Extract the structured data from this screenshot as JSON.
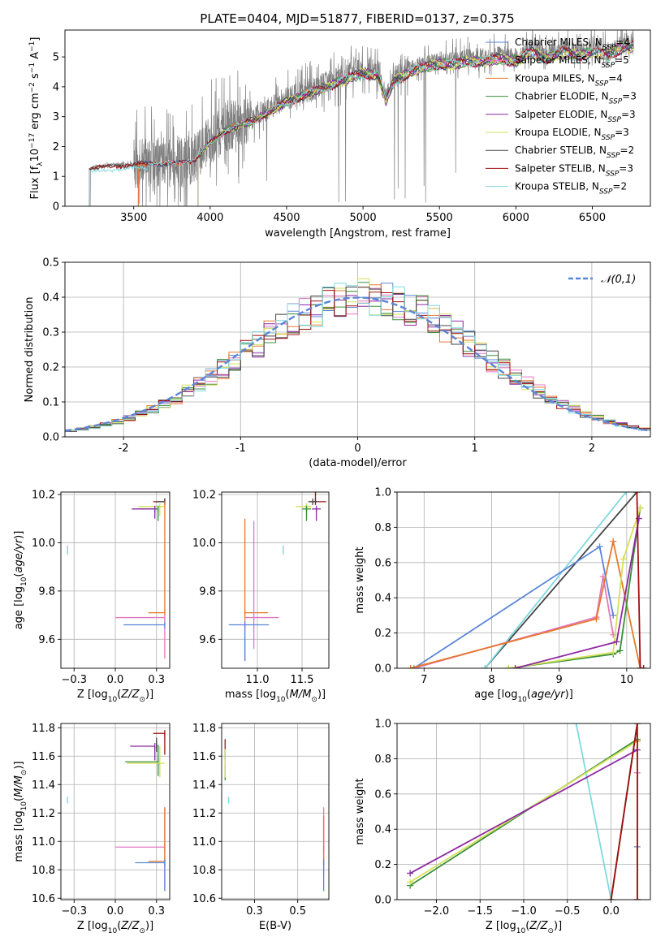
{
  "figure": {
    "title": "PLATE=0404, MJD=51877, FIBERID=0137, z=0.375"
  },
  "colors": {
    "grid": "#b0b0b0",
    "data_spectrum": "#808080",
    "gauss": "#5a86d6"
  },
  "chart_data": [
    {
      "id": "spectrum",
      "type": "line",
      "title": "PLATE=0404, MJD=51877, FIBERID=0137, z=0.375",
      "xlabel": "wavelength [Angstrom, rest frame]",
      "ylabel": "Flux [f_λ 10^-17 erg cm^-2 s^-1 A^-1]",
      "xlim": [
        3050,
        6880
      ],
      "ylim": [
        0,
        5.9
      ],
      "x_ticks": [
        3500,
        4000,
        4500,
        5000,
        5500,
        6000,
        6500
      ],
      "y_ticks": [
        0,
        1,
        2,
        3,
        4,
        5
      ],
      "grid": false,
      "legend_position": "top-right",
      "data_series": {
        "name": "",
        "color": "#808080"
      },
      "continuum_nodes": {
        "x": [
          3220,
          3300,
          3400,
          3500,
          3600,
          3700,
          3800,
          3900,
          4000,
          4100,
          4200,
          4300,
          4400,
          4500,
          4600,
          4700,
          4800,
          4900,
          5000,
          5100,
          5150,
          5200,
          5300,
          5400,
          5500,
          5600,
          5700,
          5800,
          5900,
          6000,
          6100,
          6200,
          6300,
          6400,
          6500,
          6600,
          6700
        ],
        "y": [
          1.3,
          1.35,
          1.4,
          1.42,
          1.5,
          1.45,
          1.5,
          1.6,
          2.2,
          2.6,
          2.8,
          3.0,
          3.3,
          3.6,
          3.8,
          4.0,
          4.2,
          4.4,
          4.6,
          4.5,
          3.6,
          4.3,
          4.6,
          4.8,
          4.9,
          4.9,
          5.0,
          5.0,
          5.1,
          5.0,
          5.3,
          5.1,
          5.3,
          5.2,
          5.3,
          5.2,
          5.5
        ]
      },
      "legend": [
        "Chabrier MILES, N_SSP=4",
        "Salpeter MILES, N_SSP=5",
        "Kroupa MILES, N_SSP=4",
        "Chabrier ELODIE, N_SSP=3",
        "Salpeter ELODIE, N_SSP=3",
        "Kroupa ELODIE, N_SSP=3",
        "Chabrier STELIB, N_SSP=2",
        "Salpeter STELIB, N_SSP=3",
        "Kroupa STELIB, N_SSP=2"
      ],
      "series": [
        {
          "name": "Chabrier MILES, N_SSP=4",
          "color": "#5a86d6",
          "xmin": 3530
        },
        {
          "name": "Salpeter MILES, N_SSP=5",
          "color": "#e377c2",
          "xmin": 3530
        },
        {
          "name": "Kroupa MILES, N_SSP=4",
          "color": "#e6792b",
          "xmin": 3530
        },
        {
          "name": "Chabrier ELODIE, N_SSP=3",
          "color": "#3a8f3a",
          "xmin": 3920
        },
        {
          "name": "Salpeter ELODIE, N_SSP=3",
          "color": "#8e2aa3",
          "xmin": 3920
        },
        {
          "name": "Kroupa ELODIE, N_SSP=3",
          "color": "#d4e157",
          "xmin": 3920
        },
        {
          "name": "Chabrier STELIB, N_SSP=2",
          "color": "#444444",
          "xmin": 3210
        },
        {
          "name": "Salpeter STELIB, N_SSP=3",
          "color": "#a01010",
          "xmin": 3210
        },
        {
          "name": "Kroupa STELIB, N_SSP=2",
          "color": "#7fd9e0",
          "xmin": 3210
        }
      ]
    },
    {
      "id": "residuals",
      "type": "line",
      "xlabel": "(data-model)/error",
      "ylabel": "Normed distribution",
      "xlim": [
        -2.5,
        2.5
      ],
      "ylim": [
        0,
        0.5
      ],
      "x_ticks": [
        -2,
        -1,
        0,
        1,
        2
      ],
      "y_ticks": [
        0.0,
        0.1,
        0.2,
        0.3,
        0.4,
        0.5
      ],
      "grid": true,
      "legend_position": "top-right",
      "legend": [
        "𝒩(0,1)"
      ],
      "bin_width": 0.1,
      "gaussian": {
        "name": "𝒩(0,1)",
        "mu": 0,
        "sigma": 1,
        "color": "#5a86d6"
      },
      "series": [
        {
          "color": "#5a86d6"
        },
        {
          "color": "#e377c2"
        },
        {
          "color": "#e6792b"
        },
        {
          "color": "#3a8f3a"
        },
        {
          "color": "#8e2aa3"
        },
        {
          "color": "#d4e157"
        },
        {
          "color": "#444444"
        },
        {
          "color": "#a01010"
        },
        {
          "color": "#7fd9e0"
        }
      ]
    },
    {
      "id": "age-vs-Z",
      "type": "scatter",
      "xlabel": "Z [log10(Z/Z⊙)]",
      "ylabel": "age [log10(age/yr)]",
      "xlim": [
        -0.33,
        0.33
      ],
      "ylim": [
        9.48,
        10.21
      ],
      "x_ticks": [
        -0.25,
        0.0,
        0.25
      ],
      "y_ticks": [
        9.6,
        9.8,
        10.0,
        10.2
      ],
      "grid": true,
      "points": [
        {
          "x": 0.3,
          "y": 10.17,
          "color": "#a01010",
          "xerr": [
            0.07,
            0.0
          ],
          "yerr": [
            0.0,
            0.0
          ]
        },
        {
          "x": 0.3,
          "y": 10.17,
          "color": "#444444",
          "xerr": [
            0.05,
            0.0
          ],
          "yerr": [
            0.0,
            0.0
          ]
        },
        {
          "x": 0.27,
          "y": 10.15,
          "color": "#d4e157",
          "xerr": [
            0.13,
            0.03
          ],
          "yerr": [
            0.04,
            0.0
          ]
        },
        {
          "x": 0.26,
          "y": 10.14,
          "color": "#3a8f3a",
          "xerr": [
            0.12,
            0.0
          ],
          "yerr": [
            0.05,
            0.0
          ]
        },
        {
          "x": 0.24,
          "y": 10.14,
          "color": "#8e2aa3",
          "xerr": [
            0.14,
            0.0
          ],
          "yerr": [
            0.04,
            0.0
          ]
        },
        {
          "x": -0.29,
          "y": 9.97,
          "color": "#7fd9e0",
          "xerr": [
            0.0,
            0.0
          ],
          "yerr": [
            0.02,
            0.02
          ]
        },
        {
          "x": 0.3,
          "y": 9.71,
          "color": "#e6792b",
          "xerr": [
            0.1,
            0.0
          ],
          "yerr": [
            0.0,
            0.46
          ]
        },
        {
          "x": 0.3,
          "y": 9.69,
          "color": "#e377c2",
          "xerr": [
            0.3,
            0.0
          ],
          "yerr": [
            0.17,
            0.0
          ]
        },
        {
          "x": 0.3,
          "y": 9.66,
          "color": "#5a86d6",
          "xerr": [
            0.25,
            0.0
          ],
          "yerr": [
            0.0,
            0.0
          ]
        }
      ]
    },
    {
      "id": "age-vs-mass",
      "type": "scatter",
      "xlabel": "mass [log10(M/M⊙)]",
      "ylabel": "",
      "xlim": [
        10.6,
        11.8
      ],
      "ylim": [
        9.48,
        10.21
      ],
      "x_ticks": [
        11.0,
        11.5
      ],
      "y_ticks": [
        9.6,
        9.8,
        10.0,
        10.2
      ],
      "grid": true,
      "points": [
        {
          "x": 11.65,
          "y": 10.17,
          "color": "#a01010",
          "xerr": [
            0.07,
            0.12
          ],
          "yerr": [
            0.0,
            0.1
          ]
        },
        {
          "x": 11.62,
          "y": 10.17,
          "color": "#444444",
          "xerr": [
            0.05,
            0.05
          ],
          "yerr": [
            0.0,
            0.0
          ]
        },
        {
          "x": 11.55,
          "y": 10.15,
          "color": "#d4e157",
          "xerr": [
            0.12,
            0.05
          ],
          "yerr": [
            0.04,
            0.0
          ]
        },
        {
          "x": 11.55,
          "y": 10.14,
          "color": "#3a8f3a",
          "xerr": [
            0.05,
            0.05
          ],
          "yerr": [
            0.05,
            0.0
          ]
        },
        {
          "x": 11.66,
          "y": 10.14,
          "color": "#8e2aa3",
          "xerr": [
            0.05,
            0.05
          ],
          "yerr": [
            0.05,
            0.0
          ]
        },
        {
          "x": 11.29,
          "y": 9.97,
          "color": "#7fd9e0",
          "xerr": [
            0.0,
            0.0
          ],
          "yerr": [
            0.02,
            0.02
          ]
        },
        {
          "x": 10.86,
          "y": 9.71,
          "color": "#e6792b",
          "xerr": [
            0.0,
            0.26
          ],
          "yerr": [
            0.2,
            0.39
          ]
        },
        {
          "x": 10.96,
          "y": 9.69,
          "color": "#e377c2",
          "xerr": [
            0.1,
            0.28
          ],
          "yerr": [
            0.13,
            0.4
          ]
        },
        {
          "x": 10.86,
          "y": 9.66,
          "color": "#5a86d6",
          "xerr": [
            0.18,
            0.27
          ],
          "yerr": [
            0.15,
            0.0
          ]
        }
      ]
    },
    {
      "id": "weight-vs-age",
      "type": "line",
      "xlabel": "age [log10(age/yr)]",
      "ylabel": "mass weight",
      "xlim": [
        6.6,
        10.35
      ],
      "ylim": [
        0,
        1.0
      ],
      "x_ticks": [
        7,
        8,
        9,
        10
      ],
      "y_ticks": [
        0.0,
        0.2,
        0.4,
        0.6,
        0.8,
        1.0
      ],
      "grid": true,
      "series": [
        {
          "color": "#444444",
          "x": [
            7.9,
            10.15
          ],
          "y": [
            0.0,
            1.0
          ]
        },
        {
          "color": "#7fd9e0",
          "x": [
            7.9,
            9.99
          ],
          "y": [
            0.0,
            1.0
          ]
        },
        {
          "color": "#5a86d6",
          "x": [
            6.85,
            9.6,
            9.8
          ],
          "y": [
            0.0,
            0.69,
            0.3
          ]
        },
        {
          "color": "#e377c2",
          "x": [
            6.85,
            9.55,
            9.65,
            9.8
          ],
          "y": [
            0.0,
            0.29,
            0.52,
            0.19
          ]
        },
        {
          "color": "#e6792b",
          "x": [
            6.8,
            9.55,
            9.8,
            10.2
          ],
          "y": [
            0.0,
            0.28,
            0.72,
            0.0
          ]
        },
        {
          "color": "#3a8f3a",
          "x": [
            8.25,
            9.8,
            9.9,
            10.2
          ],
          "y": [
            0.0,
            0.08,
            0.1,
            0.91
          ]
        },
        {
          "color": "#d4e157",
          "x": [
            8.25,
            9.8,
            9.95,
            10.2
          ],
          "y": [
            0.0,
            0.09,
            0.62,
            0.91
          ]
        },
        {
          "color": "#8e2aa3",
          "x": [
            8.35,
            9.85,
            10.18
          ],
          "y": [
            0.0,
            0.15,
            0.85
          ]
        },
        {
          "color": "#a01010",
          "x": [
            10.15,
            10.2,
            10.25
          ],
          "y": [
            1.0,
            0.0,
            0.0
          ]
        }
      ]
    },
    {
      "id": "mass-vs-Z",
      "type": "scatter",
      "xlabel": "Z [log10(Z/Z⊙)]",
      "ylabel": "mass [log10(M/M⊙)]",
      "xlim": [
        -0.33,
        0.33
      ],
      "ylim": [
        10.59,
        11.83
      ],
      "x_ticks": [
        -0.25,
        0.0,
        0.25
      ],
      "y_ticks": [
        10.6,
        10.8,
        11.0,
        11.2,
        11.4,
        11.6,
        11.8
      ],
      "grid": true,
      "points": [
        {
          "x": 0.3,
          "y": 11.76,
          "color": "#a01010",
          "xerr": [
            0.07,
            0.0
          ],
          "yerr": [
            0.15,
            0.0
          ]
        },
        {
          "x": 0.24,
          "y": 11.67,
          "color": "#8e2aa3",
          "xerr": [
            0.15,
            0.0
          ],
          "yerr": [
            0.1,
            0.0
          ]
        },
        {
          "x": 0.26,
          "y": 11.56,
          "color": "#3a8f3a",
          "xerr": [
            0.2,
            0.0
          ],
          "yerr": [
            0.1,
            0.12
          ]
        },
        {
          "x": 0.27,
          "y": 11.55,
          "color": "#d4e157",
          "xerr": [
            0.2,
            0.03
          ],
          "yerr": [
            0.1,
            0.12
          ]
        },
        {
          "x": 0.25,
          "y": 11.68,
          "color": "#444444",
          "xerr": [
            0.0,
            0.0
          ],
          "yerr": [
            0.05,
            0.05
          ]
        },
        {
          "x": -0.29,
          "y": 11.29,
          "color": "#7fd9e0",
          "xerr": [
            0.0,
            0.0
          ],
          "yerr": [
            0.02,
            0.02
          ]
        },
        {
          "x": 0.3,
          "y": 10.96,
          "color": "#e377c2",
          "xerr": [
            0.3,
            0.0
          ],
          "yerr": [
            0.3,
            0.28
          ]
        },
        {
          "x": 0.3,
          "y": 10.86,
          "color": "#e6792b",
          "xerr": [
            0.1,
            0.0
          ],
          "yerr": [
            0.0,
            0.38
          ]
        },
        {
          "x": 0.3,
          "y": 10.85,
          "color": "#5a86d6",
          "xerr": [
            0.18,
            0.0
          ],
          "yerr": [
            0.2,
            0.0
          ]
        }
      ]
    },
    {
      "id": "mass-vs-EBV",
      "type": "scatter",
      "xlabel": "E(B-V)",
      "ylabel": "",
      "xlim": [
        0.06,
        0.68
      ],
      "ylim": [
        10.59,
        11.83
      ],
      "x_ticks": [
        0.25,
        0.5
      ],
      "y_ticks": [
        10.6,
        10.8,
        11.0,
        11.2,
        11.4,
        11.6,
        11.8
      ],
      "grid": true,
      "points": [
        {
          "x": 0.08,
          "y": 11.62,
          "color": "#a01010",
          "xerr": [
            0.0,
            0.0
          ],
          "yerr": [
            0.08,
            0.1
          ]
        },
        {
          "x": 0.08,
          "y": 11.55,
          "color": "#3a8f3a",
          "xerr": [
            0.0,
            0.0
          ],
          "yerr": [
            0.12,
            0.1
          ]
        },
        {
          "x": 0.08,
          "y": 11.55,
          "color": "#d4e157",
          "xerr": [
            0.0,
            0.0
          ],
          "yerr": [
            0.1,
            0.1
          ]
        },
        {
          "x": 0.1,
          "y": 11.29,
          "color": "#7fd9e0",
          "xerr": [
            0.0,
            0.0
          ],
          "yerr": [
            0.02,
            0.02
          ]
        },
        {
          "x": 0.65,
          "y": 10.96,
          "color": "#e377c2",
          "xerr": [
            0.0,
            0.0
          ],
          "yerr": [
            0.2,
            0.28
          ]
        },
        {
          "x": 0.65,
          "y": 10.86,
          "color": "#e6792b",
          "xerr": [
            0.0,
            0.0
          ],
          "yerr": [
            0.0,
            0.32
          ]
        },
        {
          "x": 0.65,
          "y": 10.85,
          "color": "#5a86d6",
          "xerr": [
            0.0,
            0.0
          ],
          "yerr": [
            0.2,
            0.0
          ]
        }
      ]
    },
    {
      "id": "weight-vs-Z",
      "type": "line",
      "xlabel": "Z [log10(Z/Z⊙)]",
      "ylabel": "mass weight",
      "xlim": [
        -2.45,
        0.45
      ],
      "ylim": [
        0,
        1.0
      ],
      "x_ticks": [
        -2.0,
        -1.5,
        -1.0,
        -0.5,
        0.0
      ],
      "y_ticks": [
        0.0,
        0.2,
        0.4,
        0.6,
        0.8,
        1.0
      ],
      "grid": true,
      "series": [
        {
          "color": "#7fd9e0",
          "x": [
            -0.4,
            0.0
          ],
          "y": [
            1.0,
            0.0
          ]
        },
        {
          "color": "#444444",
          "x": [
            0.0,
            0.3
          ],
          "y": [
            0.0,
            1.0
          ]
        },
        {
          "color": "#3a8f3a",
          "x": [
            -2.3,
            0.3
          ],
          "y": [
            0.08,
            0.91
          ]
        },
        {
          "color": "#d4e157",
          "x": [
            -2.3,
            0.3
          ],
          "y": [
            0.1,
            0.9
          ]
        },
        {
          "color": "#8e2aa3",
          "x": [
            -2.3,
            0.3
          ],
          "y": [
            0.15,
            0.85
          ]
        },
        {
          "color": "#e6792b",
          "x": [
            0.3,
            0.3
          ],
          "y": [
            0.0,
            0.9
          ]
        },
        {
          "color": "#e377c2",
          "x": [
            0.3,
            0.3
          ],
          "y": [
            0.0,
            0.72
          ]
        },
        {
          "color": "#5a86d6",
          "x": [
            0.3,
            0.3
          ],
          "y": [
            0.0,
            0.3
          ]
        },
        {
          "color": "#a01010",
          "x": [
            0.0,
            0.3,
            0.3
          ],
          "y": [
            0.0,
            1.0,
            0.0
          ]
        }
      ]
    }
  ]
}
